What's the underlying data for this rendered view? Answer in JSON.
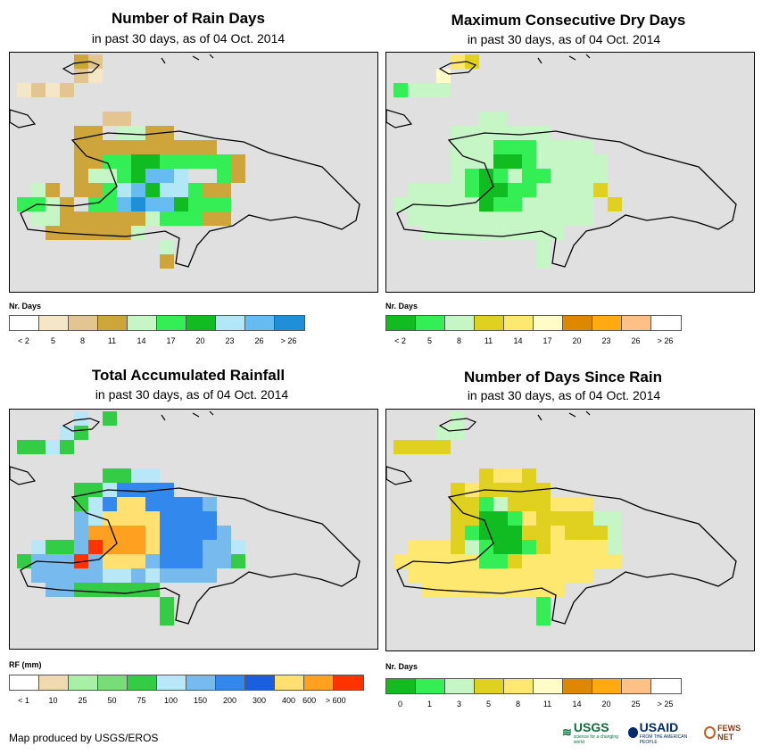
{
  "panels": [
    {
      "id": "rain-days",
      "title": "Number of Rain Days",
      "subtitle": "in past 30 days, as of 04 Oct. 2014",
      "legend_title": "Nr. Days",
      "legend_colors": [
        "#ffffff",
        "#f5e6c8",
        "#e2c590",
        "#cda53a",
        "#c6f5c6",
        "#33ee55",
        "#11bb22",
        "#b2e8f5",
        "#66bbf0",
        "#1e90d8"
      ],
      "legend_labels": [
        "< 2",
        "5",
        "8",
        "11",
        "14",
        "17",
        "20",
        "23",
        "26",
        "> 26"
      ]
    },
    {
      "id": "max-dry-days",
      "title": "Maximum Consecutive Dry Days",
      "subtitle": "in past 30 days, as of 04 Oct. 2014",
      "legend_title": "Nr. Days",
      "legend_colors": [
        "#11bb22",
        "#33ee55",
        "#c6f5c6",
        "#e0d020",
        "#ffe870",
        "#fffcc8",
        "#dd8800",
        "#ffaa11",
        "#ffc088",
        "#ffffff"
      ],
      "legend_labels": [
        "< 2",
        "5",
        "8",
        "11",
        "14",
        "17",
        "20",
        "23",
        "26",
        "> 26"
      ]
    },
    {
      "id": "total-rainfall",
      "title": "Total Accumulated Rainfall",
      "subtitle": "in past 30 days, as of 04 Oct. 2014",
      "legend_title": "RF (mm)",
      "legend_colors": [
        "#ffffff",
        "#f0d8b0",
        "#a8f0a8",
        "#77dd77",
        "#33cc44",
        "#b8e8f8",
        "#77bbee",
        "#3388ee",
        "#1a5fdd",
        "#ffe070",
        "#ffa020",
        "#ff3300"
      ],
      "legend_labels": [
        "< 1",
        "10",
        "25",
        "50",
        "75",
        "100",
        "150",
        "200",
        "300",
        "400",
        "600",
        "> 600"
      ]
    },
    {
      "id": "days-since-rain",
      "title": "Number of Days Since Rain",
      "subtitle": "in past 30 days, as of 04 Oct. 2014",
      "legend_title": "Nr. Days",
      "legend_colors": [
        "#11bb22",
        "#33ee55",
        "#c6f5c6",
        "#e0d020",
        "#ffe870",
        "#fffcc8",
        "#dd8800",
        "#ffaa11",
        "#ffc088",
        "#ffffff"
      ],
      "legend_labels": [
        "0",
        "1",
        "3",
        "5",
        "8",
        "11",
        "14",
        "20",
        "25",
        "> 25"
      ]
    }
  ],
  "credit": "Map produced by USGS/EROS",
  "logos": {
    "usgs": "USGS",
    "usgs_tagline": "science for a changing world",
    "usaid": "USAID",
    "usaid_tagline": "FROM THE AMERICAN PEOPLE",
    "fewsnet": "FEWS NET"
  }
}
